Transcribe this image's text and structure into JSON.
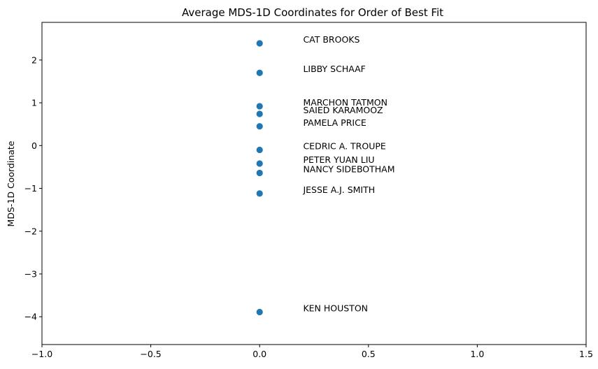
{
  "chart_data": {
    "type": "scatter",
    "title": "Average MDS-1D Coordinates for Order of Best Fit",
    "xlabel": "",
    "ylabel": "MDS-1D Coordinate",
    "xlim": [
      -1.0,
      1.5
    ],
    "ylim": [
      -4.65,
      2.88
    ],
    "x_ticks": [
      -1.0,
      -0.5,
      0.0,
      0.5,
      1.0,
      1.5
    ],
    "x_tick_labels": [
      "−1.0",
      "−0.5",
      "0.0",
      "0.5",
      "1.0",
      "1.5"
    ],
    "y_ticks": [
      2,
      1,
      0,
      -1,
      -2,
      -3,
      -4
    ],
    "y_tick_labels": [
      "2",
      "1",
      "0",
      "−1",
      "−2",
      "−3",
      "−4"
    ],
    "grid": false,
    "marker_color": "#1f77b4",
    "label_x_offset": 0.2,
    "points": [
      {
        "label": "CAT BROOKS",
        "x": 0.0,
        "y": 2.39
      },
      {
        "label": "LIBBY SCHAAF",
        "x": 0.0,
        "y": 1.7
      },
      {
        "label": "MARCHON TATMON",
        "x": 0.0,
        "y": 0.92
      },
      {
        "label": "SAIED KARAMOOZ",
        "x": 0.0,
        "y": 0.74
      },
      {
        "label": "PAMELA PRICE",
        "x": 0.0,
        "y": 0.45
      },
      {
        "label": "CEDRIC A. TROUPE",
        "x": 0.0,
        "y": -0.1
      },
      {
        "label": "PETER YUAN LIU",
        "x": 0.0,
        "y": -0.42
      },
      {
        "label": "NANCY SIDEBOTHAM",
        "x": 0.0,
        "y": -0.64
      },
      {
        "label": "JESSE A.J. SMITH",
        "x": 0.0,
        "y": -1.12
      },
      {
        "label": "KEN HOUSTON",
        "x": 0.0,
        "y": -3.89
      }
    ]
  }
}
